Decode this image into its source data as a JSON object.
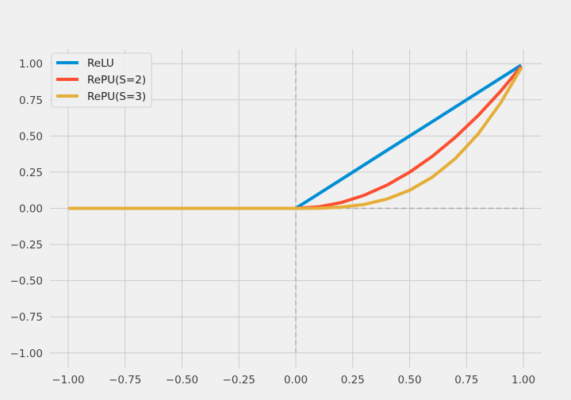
{
  "chart_data": {
    "type": "line",
    "title": "",
    "xlabel": "",
    "ylabel": "",
    "xlim": [
      -1.08,
      1.08
    ],
    "ylim": [
      -1.1,
      1.1
    ],
    "grid": true,
    "legend_position": "top-left",
    "x_ticks": [
      -1.0,
      -0.75,
      -0.5,
      -0.25,
      0.0,
      0.25,
      0.5,
      0.75,
      1.0
    ],
    "x_tick_labels": [
      "−1.00",
      "−0.75",
      "−0.50",
      "−0.25",
      "0.00",
      "0.25",
      "0.50",
      "0.75",
      "1.00"
    ],
    "y_ticks": [
      1.0,
      0.75,
      0.5,
      0.25,
      0.0,
      -0.25,
      -0.5,
      -0.75,
      -1.0
    ],
    "y_tick_labels": [
      "1.00",
      "0.75",
      "0.50",
      "0.25",
      "0.00",
      "−0.25",
      "−0.50",
      "−0.75",
      "−1.00"
    ],
    "x": [
      -1.0,
      -0.75,
      -0.5,
      -0.25,
      0.0,
      0.1,
      0.2,
      0.3,
      0.4,
      0.5,
      0.6,
      0.7,
      0.8,
      0.9,
      0.99
    ],
    "series": [
      {
        "name": "ReLU",
        "color": "#008fd5",
        "values": [
          0,
          0,
          0,
          0,
          0,
          0.1,
          0.2,
          0.3,
          0.4,
          0.5,
          0.6,
          0.7,
          0.8,
          0.9,
          0.99
        ]
      },
      {
        "name": "RePU(S=2)",
        "color": "#fc4f30",
        "values": [
          0,
          0,
          0,
          0,
          0,
          0.01,
          0.04,
          0.09,
          0.16,
          0.25,
          0.36,
          0.49,
          0.64,
          0.81,
          0.98
        ]
      },
      {
        "name": "RePU(S=3)",
        "color": "#e5ae38",
        "values": [
          0,
          0,
          0,
          0,
          0,
          0.001,
          0.008,
          0.027,
          0.064,
          0.125,
          0.216,
          0.343,
          0.512,
          0.729,
          0.97
        ]
      }
    ],
    "reference_lines": [
      {
        "orientation": "vertical",
        "value": 0.0,
        "from": -1.0,
        "to": 1.0,
        "style": "dashed",
        "color": "#aaaaaa"
      },
      {
        "orientation": "horizontal",
        "value": 0.0,
        "from": -1.0,
        "to": 1.0,
        "style": "dashed",
        "color": "#aaaaaa"
      }
    ]
  }
}
